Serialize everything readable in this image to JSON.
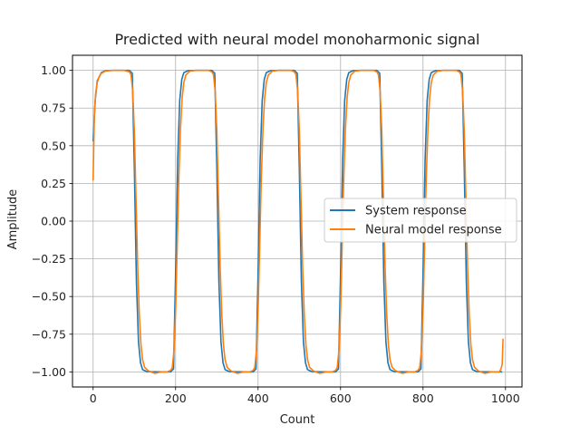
{
  "chart_data": {
    "type": "line",
    "title": "Predicted with neural model monoharmonic signal",
    "xlabel": "Count",
    "ylabel": "Amplitude",
    "xlim": [
      -50,
      1040
    ],
    "ylim": [
      -1.1,
      1.1
    ],
    "xticks": [
      0,
      200,
      400,
      600,
      800,
      1000
    ],
    "yticks": [
      -1.0,
      -0.75,
      -0.5,
      -0.25,
      0.0,
      0.25,
      0.5,
      0.75,
      1.0
    ],
    "xtick_labels": [
      "0",
      "200",
      "400",
      "600",
      "800",
      "1000"
    ],
    "ytick_labels": [
      "−1.00",
      "−0.75",
      "−0.50",
      "−0.25",
      "0.00",
      "0.25",
      "0.50",
      "0.75",
      "1.00"
    ],
    "grid": true,
    "legend_position": "center-right",
    "series": [
      {
        "name": "System response",
        "color": "#1f77b4",
        "x": [
          0,
          5,
          10,
          20,
          30,
          50,
          70,
          88,
          95,
          100,
          105,
          110,
          115,
          120,
          130,
          150,
          170,
          188,
          195,
          200,
          205,
          210,
          215,
          220,
          230,
          250,
          270,
          288,
          295,
          300,
          305,
          310,
          315,
          320,
          330,
          350,
          370,
          388,
          395,
          400,
          405,
          410,
          415,
          420,
          430,
          450,
          470,
          488,
          495,
          500,
          505,
          510,
          515,
          520,
          530,
          550,
          570,
          588,
          595,
          600,
          605,
          610,
          615,
          620,
          630,
          650,
          670,
          688,
          695,
          700,
          705,
          710,
          715,
          720,
          730,
          750,
          770,
          788,
          795,
          800,
          805,
          810,
          815,
          820,
          830,
          850,
          870,
          888,
          895,
          900,
          905,
          910,
          915,
          920,
          930,
          950,
          970,
          988,
          992
        ],
        "y": [
          0.53,
          0.8,
          0.93,
          0.985,
          0.998,
          1.0,
          1.0,
          1.0,
          0.98,
          0.35,
          -0.4,
          -0.8,
          -0.94,
          -0.985,
          -0.998,
          -1.0,
          -1.0,
          -1.0,
          -0.98,
          -0.35,
          0.4,
          0.8,
          0.94,
          0.985,
          0.998,
          1.0,
          1.0,
          1.0,
          0.98,
          0.35,
          -0.4,
          -0.8,
          -0.94,
          -0.985,
          -0.998,
          -1.0,
          -1.0,
          -1.0,
          -0.98,
          -0.35,
          0.4,
          0.8,
          0.94,
          0.985,
          0.998,
          1.0,
          1.0,
          1.0,
          0.98,
          0.35,
          -0.4,
          -0.8,
          -0.94,
          -0.985,
          -0.998,
          -1.0,
          -1.0,
          -1.0,
          -0.98,
          -0.35,
          0.4,
          0.8,
          0.94,
          0.985,
          0.998,
          1.0,
          1.0,
          1.0,
          0.98,
          0.35,
          -0.4,
          -0.8,
          -0.94,
          -0.985,
          -0.998,
          -1.0,
          -1.0,
          -1.0,
          -0.98,
          -0.35,
          0.4,
          0.8,
          0.94,
          0.985,
          0.998,
          1.0,
          1.0,
          1.0,
          0.98,
          0.35,
          -0.4,
          -0.8,
          -0.94,
          -0.985,
          -0.998,
          -1.0,
          -1.0,
          -1.0,
          -1.0
        ]
      },
      {
        "name": "Neural model response",
        "color": "#ff7f0e",
        "x": [
          0,
          3,
          6,
          10,
          15,
          20,
          30,
          45,
          60,
          75,
          88,
          92,
          96,
          100,
          104,
          108,
          112,
          116,
          120,
          125,
          135,
          150,
          165,
          180,
          188,
          192,
          196,
          200,
          204,
          208,
          212,
          216,
          220,
          225,
          235,
          250,
          265,
          280,
          288,
          292,
          296,
          300,
          304,
          308,
          312,
          316,
          320,
          325,
          335,
          350,
          365,
          380,
          388,
          392,
          396,
          400,
          404,
          408,
          412,
          416,
          420,
          425,
          435,
          450,
          465,
          480,
          488,
          492,
          496,
          500,
          504,
          508,
          512,
          516,
          520,
          525,
          535,
          550,
          565,
          580,
          588,
          592,
          596,
          600,
          604,
          608,
          612,
          616,
          620,
          625,
          635,
          650,
          665,
          680,
          688,
          692,
          696,
          700,
          704,
          708,
          712,
          716,
          720,
          725,
          735,
          750,
          765,
          780,
          788,
          792,
          796,
          800,
          804,
          808,
          812,
          816,
          820,
          825,
          835,
          850,
          865,
          880,
          888,
          892,
          896,
          900,
          904,
          908,
          912,
          916,
          920,
          925,
          935,
          950,
          965,
          980,
          985,
          989,
          992,
          994
        ],
        "y": [
          0.27,
          0.7,
          0.84,
          0.92,
          0.96,
          0.98,
          0.995,
          1.0,
          1.0,
          1.0,
          0.99,
          0.97,
          0.86,
          0.6,
          0.15,
          -0.3,
          -0.62,
          -0.82,
          -0.92,
          -0.97,
          -0.995,
          -1.01,
          -1.0,
          -1.0,
          -0.99,
          -0.97,
          -0.86,
          -0.6,
          -0.15,
          0.3,
          0.62,
          0.82,
          0.92,
          0.97,
          0.995,
          1.0,
          1.0,
          1.0,
          0.99,
          0.97,
          0.86,
          0.6,
          0.15,
          -0.3,
          -0.62,
          -0.82,
          -0.92,
          -0.97,
          -0.995,
          -1.01,
          -1.0,
          -1.0,
          -0.99,
          -0.97,
          -0.86,
          -0.6,
          -0.15,
          0.3,
          0.62,
          0.82,
          0.92,
          0.97,
          0.995,
          1.0,
          1.0,
          1.0,
          0.99,
          0.97,
          0.86,
          0.6,
          0.15,
          -0.3,
          -0.62,
          -0.82,
          -0.92,
          -0.97,
          -0.995,
          -1.01,
          -1.0,
          -1.0,
          -0.99,
          -0.97,
          -0.86,
          -0.6,
          -0.15,
          0.3,
          0.62,
          0.82,
          0.92,
          0.97,
          0.995,
          1.0,
          1.0,
          1.0,
          0.99,
          0.97,
          0.86,
          0.6,
          0.15,
          -0.3,
          -0.62,
          -0.82,
          -0.92,
          -0.97,
          -0.995,
          -1.01,
          -1.0,
          -1.0,
          -0.99,
          -0.97,
          -0.86,
          -0.6,
          -0.15,
          0.3,
          0.62,
          0.82,
          0.92,
          0.97,
          0.995,
          1.0,
          1.0,
          1.0,
          0.99,
          0.97,
          0.86,
          0.6,
          0.15,
          -0.3,
          -0.62,
          -0.82,
          -0.92,
          -0.97,
          -0.995,
          -1.01,
          -1.0,
          -1.0,
          -1.0,
          -0.98,
          -0.95,
          -0.78
        ]
      }
    ]
  }
}
